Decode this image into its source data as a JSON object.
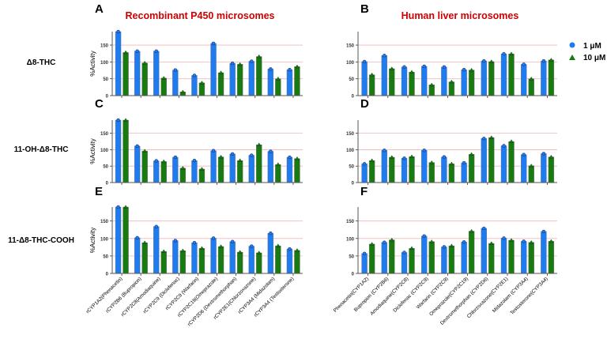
{
  "colors": {
    "series_1uM": "#1E7BF0",
    "series_10uM": "#1A7A12",
    "title": "#D00000",
    "gridline": "#F4B6B6"
  },
  "column_titles": [
    "Recombinant P450 microsomes",
    "Human liver microsomes"
  ],
  "row_labels": [
    "Δ8-THC",
    "11-OH-Δ8-THC",
    "11-Δ8-THC-COOH"
  ],
  "legend": [
    {
      "label": "1 μM",
      "marker": "circle"
    },
    {
      "label": "10 μM",
      "marker": "triangle"
    }
  ],
  "chart_data": [
    {
      "panel": "A",
      "type": "bar",
      "ylabel": "%Activity",
      "ylim": [
        0,
        190
      ],
      "yticks": [
        0,
        50,
        100,
        150
      ],
      "grid": "horizontal red lines at 50/100/150",
      "categories": [
        "rCYP1A2(Phenacetin)",
        "rCYP2B6 (Bupropion)",
        "rCYP2C8(Amodiaquine)",
        "rCYP2C9 (Diclofenac)",
        "rCYP2C9 (Warfarin)",
        "rCYP2C19(Omeprazole)",
        "rCYP2D6 (Dextromethorphan)",
        "rCYP2E1(Chlorzoxazone)",
        "rCYP3A4 (Midazolam)",
        "rCYP3A4 (Testosterone)"
      ],
      "series": [
        {
          "name": "1 μM",
          "values": [
            190,
            132,
            132,
            76,
            60,
            155,
            96,
            102,
            79,
            77
          ]
        },
        {
          "name": "10 μM",
          "values": [
            128,
            97,
            52,
            11,
            38,
            68,
            93,
            116,
            50,
            86
          ]
        }
      ]
    },
    {
      "panel": "B",
      "type": "bar",
      "ylabel": "",
      "ylim": [
        0,
        190
      ],
      "yticks": [
        0,
        50,
        100,
        150
      ],
      "grid": "horizontal red lines at 50/100/150",
      "categories": [
        "Phenacetin(CYP1A2)",
        "Bupropion (CYP2B6)",
        "Amodiaquine(CYP2C8)",
        "Diclofenac (CYP2C9)",
        "Warfarin (CYP2C9)",
        "Omeprazole(CYP2C19)",
        "Dextromethorphan (CYP2D6)",
        "Chlorzoxazone(CYP2E1)",
        "Midazolam (CYP3A4)",
        "Testosterone(CYP3A4)"
      ],
      "series": [
        {
          "name": "1 μM",
          "values": [
            101,
            119,
            85,
            87,
            85,
            77,
            103,
            124,
            93,
            103
          ]
        },
        {
          "name": "10 μM",
          "values": [
            62,
            80,
            70,
            32,
            41,
            76,
            101,
            124,
            50,
            106
          ]
        }
      ]
    },
    {
      "panel": "C",
      "type": "bar",
      "ylabel": "%Activity",
      "ylim": [
        0,
        190
      ],
      "yticks": [
        0,
        50,
        100,
        150
      ],
      "grid": "horizontal red lines at 50/100/150",
      "categories": [
        "rCYP1A2(Phenacetin)",
        "rCYP2B6 (Bupropion)",
        "rCYP2C8(Amodiaquine)",
        "rCYP2C9 (Diclofenac)",
        "rCYP2C9 (Warfarin)",
        "rCYP2C19(Omeprazole)",
        "rCYP2D6 (Dextromethorphan)",
        "rCYP2E1(Chlorzoxazone)",
        "rCYP3A4 (Midazolam)",
        "rCYP3A4 (Testosterone)"
      ],
      "series": [
        {
          "name": "1 μM",
          "values": [
            190,
            111,
            66,
            77,
            67,
            97,
            87,
            83,
            95,
            77
          ]
        },
        {
          "name": "10 μM",
          "values": [
            190,
            96,
            64,
            44,
            41,
            78,
            67,
            115,
            55,
            73
          ]
        }
      ]
    },
    {
      "panel": "D",
      "type": "bar",
      "ylabel": "",
      "ylim": [
        0,
        190
      ],
      "yticks": [
        0,
        50,
        100,
        150
      ],
      "grid": "horizontal red lines at 50/100/150",
      "categories": [
        "Phenacetin(CYP1A2)",
        "Bupropion (CYP2B6)",
        "Amodiaquine(CYP2C8)",
        "Diclofenac (CYP2C9)",
        "Warfarin (CYP2C9)",
        "Omeprazole(CYP2C19)",
        "Dextromethorphan (CYP2D6)",
        "Chlorzoxazone(CYP2E1)",
        "Midazolam (CYP3A4)",
        "Testosterone(CYP3A4)"
      ],
      "series": [
        {
          "name": "1 μM",
          "values": [
            57,
            98,
            74,
            98,
            78,
            60,
            134,
            112,
            85,
            88
          ]
        },
        {
          "name": "10 μM",
          "values": [
            67,
            77,
            79,
            61,
            57,
            86,
            137,
            125,
            51,
            78
          ]
        }
      ]
    },
    {
      "panel": "E",
      "type": "bar",
      "ylabel": "%Activity",
      "ylim": [
        0,
        190
      ],
      "yticks": [
        0,
        50,
        100,
        150
      ],
      "grid": "horizontal red lines at 50/100/150",
      "categories": [
        "rCYP1A2(Phenacetin)",
        "rCYP2B6 (Bupropion)",
        "rCYP2C8(Amodiaquine)",
        "rCYP2C9 (Diclofenac)",
        "rCYP2C9 (Warfarin)",
        "rCYP2C19(Omeprazole)",
        "rCYP2D6 (Dextromethorphan)",
        "rCYP2E1(Chlorzoxazone)",
        "rCYP3A4 (Midazolam)",
        "rCYP3A4 (Testosterone)"
      ],
      "series": [
        {
          "name": "1 μM",
          "values": [
            190,
            102,
            134,
            94,
            88,
            101,
            91,
            78,
            115,
            70
          ]
        },
        {
          "name": "10 μM",
          "values": [
            190,
            88,
            63,
            65,
            72,
            77,
            61,
            59,
            79,
            66
          ]
        }
      ]
    },
    {
      "panel": "F",
      "type": "bar",
      "ylabel": "",
      "ylim": [
        0,
        190
      ],
      "yticks": [
        0,
        50,
        100,
        150
      ],
      "grid": "horizontal red lines at 50/100/150",
      "categories": [
        "Phenacetin(CYP1A2)",
        "Bupropion (CYP2B6)",
        "Amodiaquine(CYP2C8)",
        "Diclofenac (CYP2C9)",
        "Warfarin (CYP2C9)",
        "Omeprazole(CYP2C19)",
        "Dextromethorphan (CYP2D6)",
        "Chlorzoxazone(CYP2E1)",
        "Midazolam (CYP3A4)",
        "Testosterone(CYP3A4)"
      ],
      "series": [
        {
          "name": "1 μM",
          "values": [
            57,
            89,
            60,
            107,
            76,
            90,
            129,
            101,
            92,
            120
          ]
        },
        {
          "name": "10 μM",
          "values": [
            84,
            96,
            72,
            91,
            79,
            121,
            86,
            95,
            89,
            92
          ]
        }
      ]
    }
  ]
}
